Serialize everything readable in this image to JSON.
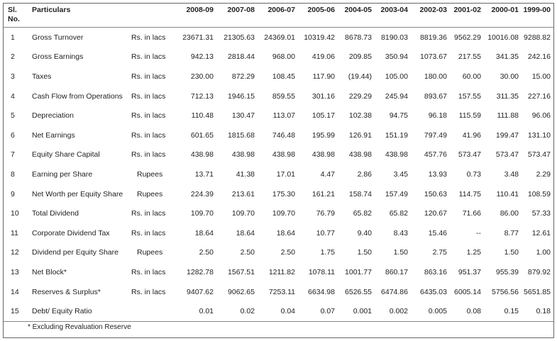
{
  "headers": {
    "sl": "Sl.",
    "no": "No.",
    "particulars": "Particulars",
    "years": [
      "2008-09",
      "2007-08",
      "2006-07",
      "2005-06",
      "2004-05",
      "2003-04",
      "2002-03",
      "2001-02",
      "2000-01",
      "1999-00"
    ]
  },
  "rows": [
    {
      "sl": "1",
      "particular": "Gross Turnover",
      "unit": "Rs. in lacs",
      "values": [
        "23671.31",
        "21305.63",
        "24369.01",
        "10319.42",
        "8678.73",
        "8190.03",
        "8819.36",
        "9562.29",
        "10016.08",
        "9288.82"
      ]
    },
    {
      "sl": "2",
      "particular": "Gross Earnings",
      "unit": "Rs. in lacs",
      "values": [
        "942.13",
        "2818.44",
        "968.00",
        "419.06",
        "209.85",
        "350.94",
        "1073.67",
        "217.55",
        "341.35",
        "242.16"
      ]
    },
    {
      "sl": "3",
      "particular": "Taxes",
      "unit": "Rs. in lacs",
      "values": [
        "230.00",
        "872.29",
        "108.45",
        "117.90",
        "(19.44)",
        "105.00",
        "180.00",
        "60.00",
        "30.00",
        "15.00"
      ]
    },
    {
      "sl": "4",
      "particular": "Cash Flow from Operations",
      "unit": "Rs. in lacs",
      "values": [
        "712.13",
        "1946.15",
        "859.55",
        "301.16",
        "229.29",
        "245.94",
        "893.67",
        "157.55",
        "311.35",
        "227.16"
      ]
    },
    {
      "sl": "5",
      "particular": "Depreciation",
      "unit": "Rs. in lacs",
      "values": [
        "110.48",
        "130.47",
        "113.07",
        "105.17",
        "102.38",
        "94.75",
        "96.18",
        "115.59",
        "111.88",
        "96.06"
      ]
    },
    {
      "sl": "6",
      "particular": "Net Earnings",
      "unit": "Rs. in lacs",
      "values": [
        "601.65",
        "1815.68",
        "746.48",
        "195.99",
        "126.91",
        "151.19",
        "797.49",
        "41.96",
        "199.47",
        "131.10"
      ]
    },
    {
      "sl": "7",
      "particular": "Equity Share Capital",
      "unit": "Rs. in lacs",
      "values": [
        "438.98",
        "438.98",
        "438.98",
        "438.98",
        "438.98",
        "438.98",
        "457.76",
        "573.47",
        "573.47",
        "573.47"
      ]
    },
    {
      "sl": "8",
      "particular": "Earning per Share",
      "unit": "Rupees",
      "values": [
        "13.71",
        "41.38",
        "17.01",
        "4.47",
        "2.86",
        "3.45",
        "13.93",
        "0.73",
        "3.48",
        "2.29"
      ]
    },
    {
      "sl": "9",
      "particular": "Net Worth per Equity Share",
      "unit": "Rupees",
      "values": [
        "224.39",
        "213.61",
        "175.30",
        "161.21",
        "158.74",
        "157.49",
        "150.63",
        "114.75",
        "110.41",
        "108.59"
      ]
    },
    {
      "sl": "10",
      "particular": "Total Dividend",
      "unit": "Rs. in lacs",
      "values": [
        "109.70",
        "109.70",
        "109.70",
        "76.79",
        "65.82",
        "65.82",
        "120.67",
        "71.66",
        "86.00",
        "57.33"
      ]
    },
    {
      "sl": "11",
      "particular": "Corporate Dividend Tax",
      "unit": "Rs. in lacs",
      "values": [
        "18.64",
        "18.64",
        "18.64",
        "10.77",
        "9.40",
        "8.43",
        "15.46",
        "--",
        "8.77",
        "12.61"
      ]
    },
    {
      "sl": "12",
      "particular": "Dividend per Equity Share",
      "unit": "Rupees",
      "values": [
        "2.50",
        "2.50",
        "2.50",
        "1.75",
        "1.50",
        "1.50",
        "2.75",
        "1.25",
        "1.50",
        "1.00"
      ]
    },
    {
      "sl": "13",
      "particular": "Net Block*",
      "unit": "Rs. in lacs",
      "values": [
        "1282.78",
        "1567.51",
        "1211.82",
        "1078.11",
        "1001.77",
        "860.17",
        "863.16",
        "951.37",
        "955.39",
        "879.92"
      ]
    },
    {
      "sl": "14",
      "particular": "Reserves & Surplus*",
      "unit": "Rs. in lacs",
      "values": [
        "9407.62",
        "9062.65",
        "7253.11",
        "6634.98",
        "6526.55",
        "6474.86",
        "6435.03",
        "6005.14",
        "5756.56",
        "5651.85"
      ]
    },
    {
      "sl": "15",
      "particular": "Debt/ Equity Ratio",
      "unit": "",
      "values": [
        "0.01",
        "0.02",
        "0.04",
        "0.07",
        "0.001",
        "0.002",
        "0.005",
        "0.08",
        "0.15",
        "0.18"
      ]
    }
  ],
  "footnote": "* Excluding Revaluation Reserve"
}
